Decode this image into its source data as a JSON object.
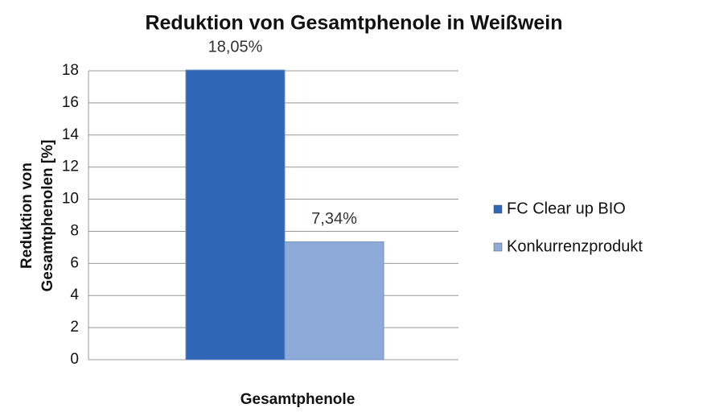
{
  "chart_data": {
    "type": "bar",
    "title": "Reduktion von Gesamtphenole in Weißwein",
    "x_label": "Gesamtphenole",
    "y_label": [
      "Reduktion von",
      "Gesamtphenolen [%]"
    ],
    "categories": [
      "Gesamtphenole"
    ],
    "series": [
      {
        "name": "FC Clear up BIO",
        "color": "#2f66b5",
        "values": [
          18.05
        ],
        "value_labels": [
          "18,05%"
        ]
      },
      {
        "name": "Konkurrenzprodukt",
        "color": "#8eaad8",
        "values": [
          7.34
        ],
        "value_labels": [
          "7,34%"
        ]
      }
    ],
    "ylim": [
      0,
      18
    ],
    "yticks": [
      0,
      2,
      4,
      6,
      8,
      10,
      12,
      14,
      16,
      18
    ],
    "grid": true,
    "legend": "right"
  }
}
